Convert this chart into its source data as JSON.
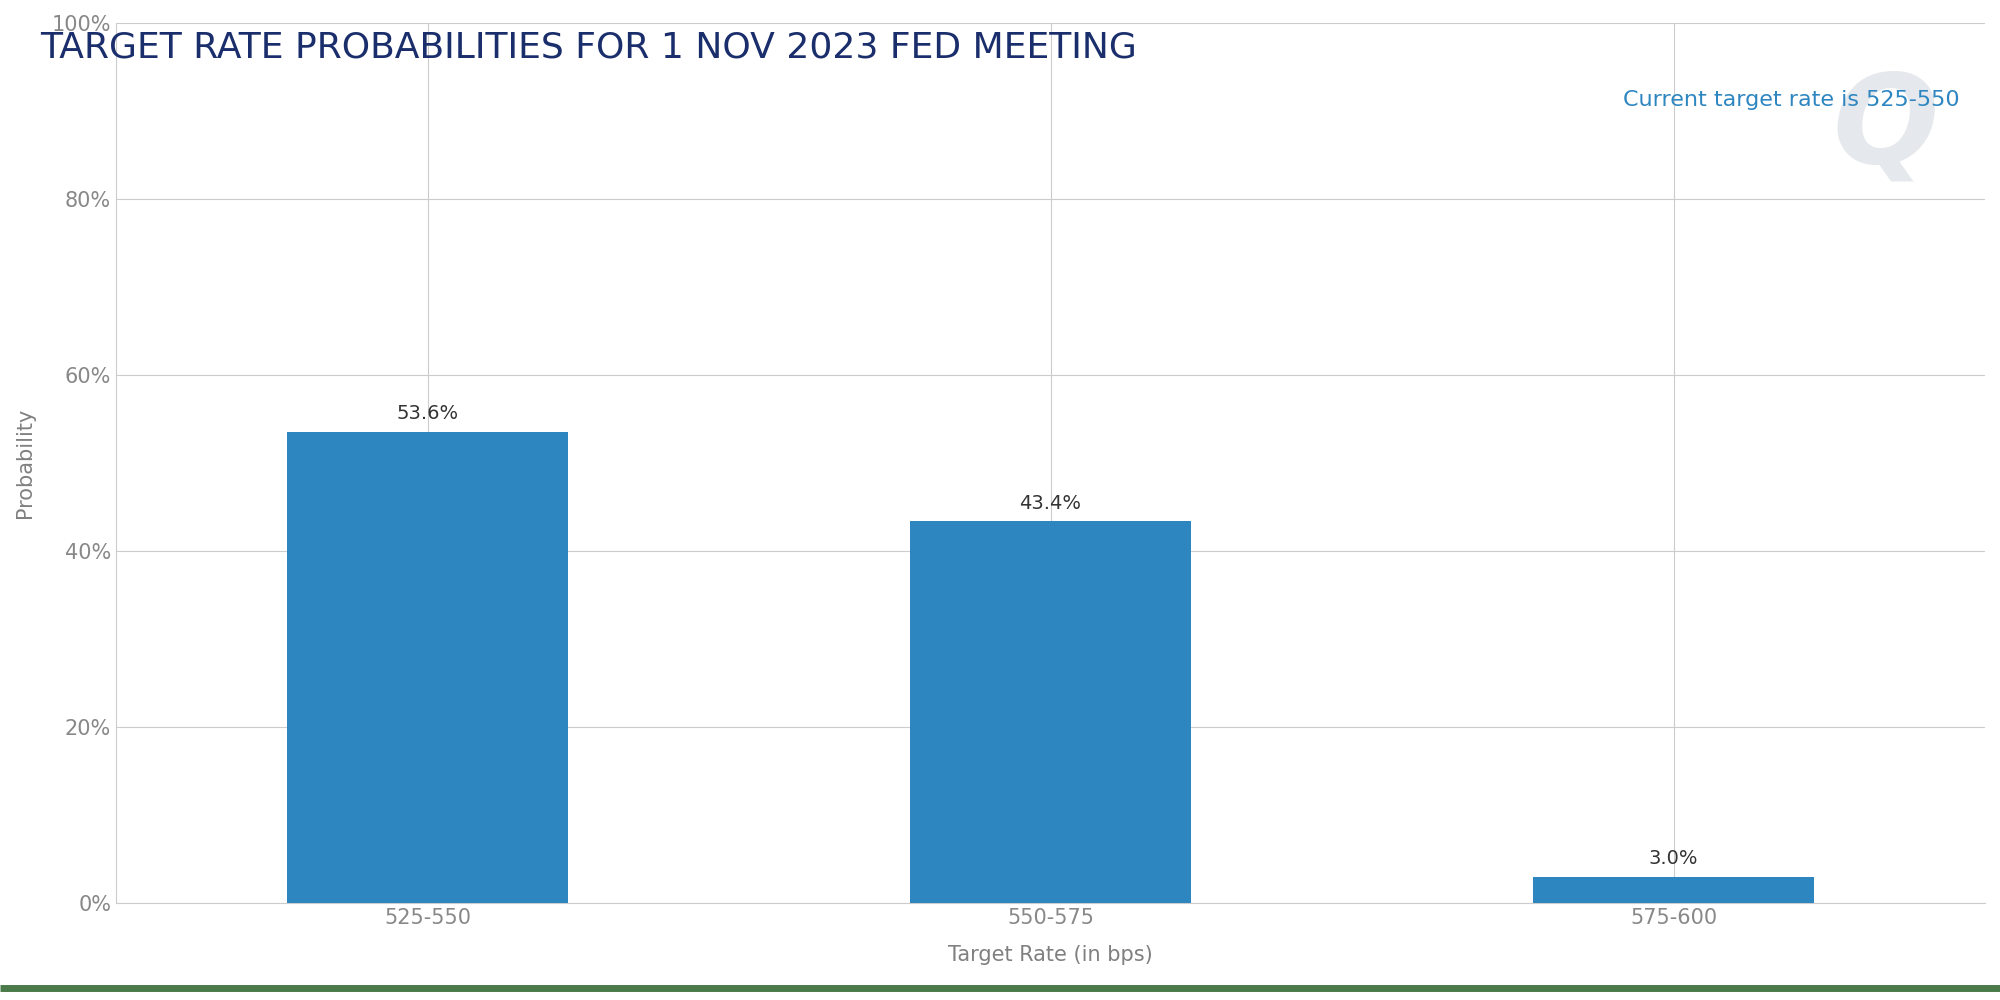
{
  "title": "TARGET RATE PROBABILITIES FOR 1 NOV 2023 FED MEETING",
  "subtitle": "Current target rate is 525-550",
  "categories": [
    "525-550",
    "550-575",
    "575-600"
  ],
  "values": [
    53.6,
    43.4,
    3.0
  ],
  "bar_color": "#2e86c1",
  "title_color": "#1a2e6c",
  "subtitle_color": "#2e86c1",
  "xlabel": "Target Rate (in bps)",
  "ylabel": "Probability",
  "xlabel_color": "#808080",
  "ylabel_color": "#808080",
  "tick_label_color": "#888888",
  "ytick_labels": [
    "0%",
    "20%",
    "40%",
    "60%",
    "80%",
    "100%"
  ],
  "ytick_values": [
    0,
    20,
    40,
    60,
    80,
    100
  ],
  "ylim": [
    0,
    105
  ],
  "background_color": "#ffffff",
  "grid_color": "#cccccc",
  "bar_label_color": "#333333",
  "watermark_color": "#d5dae0",
  "title_fontsize": 26,
  "subtitle_fontsize": 16,
  "axis_label_fontsize": 15,
  "tick_fontsize": 15,
  "bar_label_fontsize": 14,
  "bottom_line_color": "#4a7a4a",
  "bar_width": 0.45,
  "x_positions": [
    0.5,
    1.5,
    2.5
  ],
  "xlim": [
    0,
    3
  ]
}
